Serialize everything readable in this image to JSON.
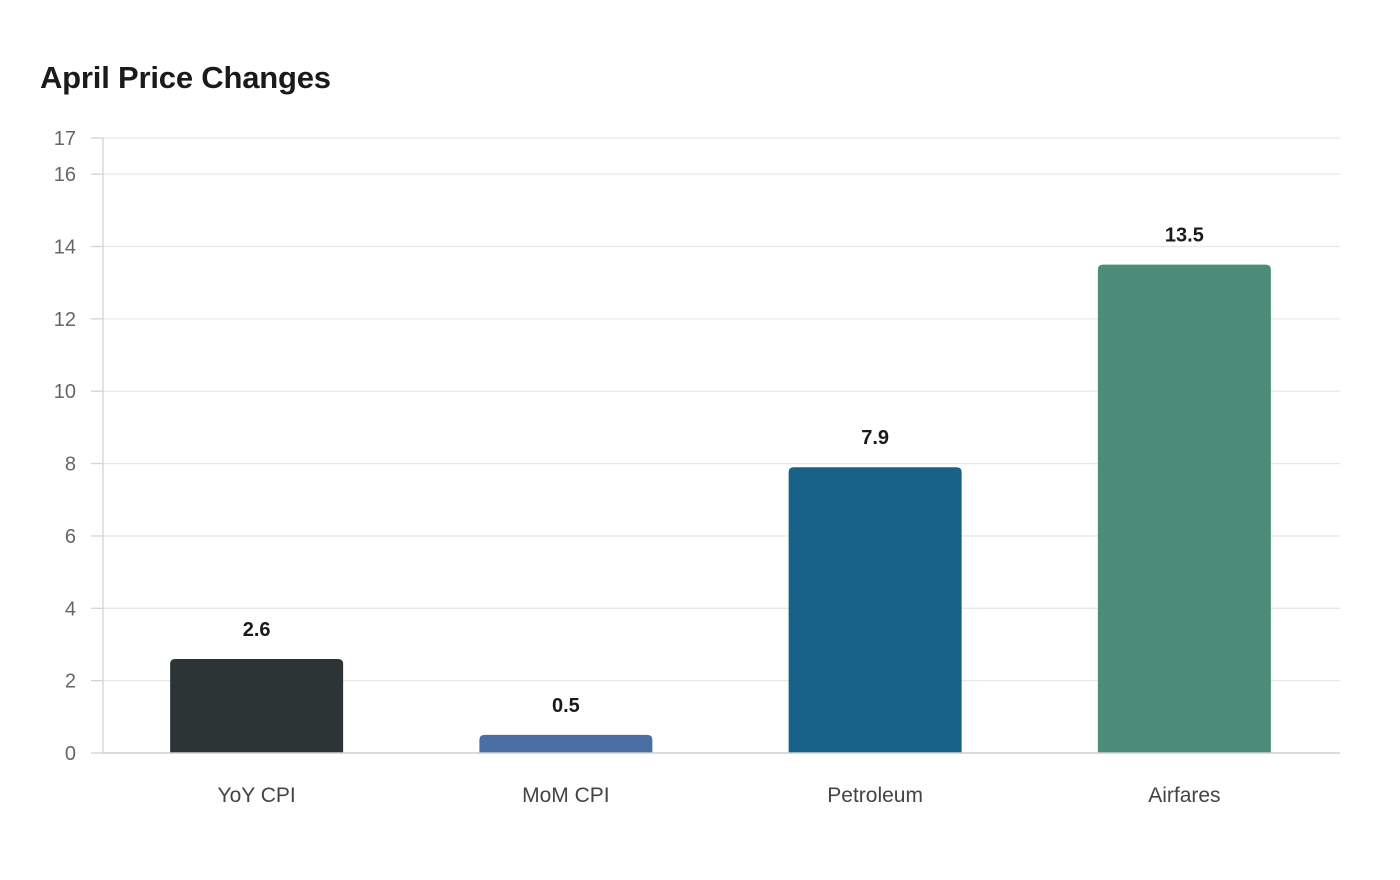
{
  "chart_data": {
    "type": "bar",
    "title": "April Price Changes",
    "xlabel": "",
    "ylabel": "",
    "categories": [
      "YoY CPI",
      "MoM CPI",
      "Petroleum",
      "Airfares"
    ],
    "values": [
      2.6,
      0.5,
      7.9,
      13.5
    ],
    "data_labels": [
      "2.6",
      "0.5",
      "7.9",
      "13.5"
    ],
    "colors": [
      "#2d3436",
      "#4a6fa5",
      "#186289",
      "#4e8c7a"
    ],
    "ylim": [
      0,
      17
    ],
    "yticks": [
      0,
      2,
      4,
      6,
      8,
      10,
      12,
      14,
      16,
      17
    ],
    "grid": true,
    "legend": "none"
  }
}
